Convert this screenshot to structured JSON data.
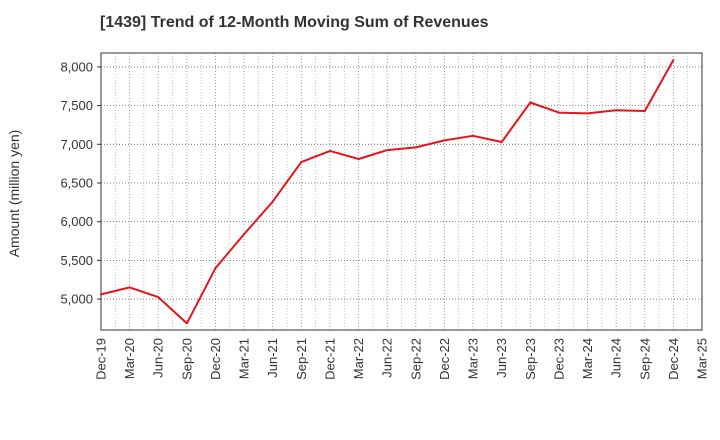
{
  "chart_data": {
    "type": "line",
    "title": "[1439]  Trend of 12-Month Moving Sum of Revenues",
    "ylabel": "Amount (million yen)",
    "xlabel": "",
    "categories": [
      "Dec-19",
      "Mar-20",
      "Jun-20",
      "Sep-20",
      "Dec-20",
      "Mar-21",
      "Jun-21",
      "Sep-21",
      "Dec-21",
      "Mar-22",
      "Jun-22",
      "Sep-22",
      "Dec-22",
      "Mar-23",
      "Jun-23",
      "Sep-23",
      "Dec-23",
      "Mar-24",
      "Jun-24",
      "Sep-24",
      "Dec-24",
      "Mar-25"
    ],
    "series": [
      {
        "values": [
          5060,
          5150,
          5025,
          4685,
          5400,
          5840,
          6260,
          6770,
          6915,
          6810,
          6925,
          6960,
          7050,
          7110,
          7030,
          7540,
          7410,
          7400,
          7440,
          7430,
          8090,
          null
        ],
        "color": "#e8141c"
      }
    ],
    "yticks": [
      5000,
      5500,
      6000,
      6500,
      7000,
      7500,
      8000
    ],
    "ytick_labels": [
      "5,000",
      "5,500",
      "6,000",
      "6,500",
      "7,000",
      "7,500",
      "8,000"
    ],
    "ylim": [
      4600,
      8180
    ],
    "grid": true,
    "legend": "none"
  }
}
